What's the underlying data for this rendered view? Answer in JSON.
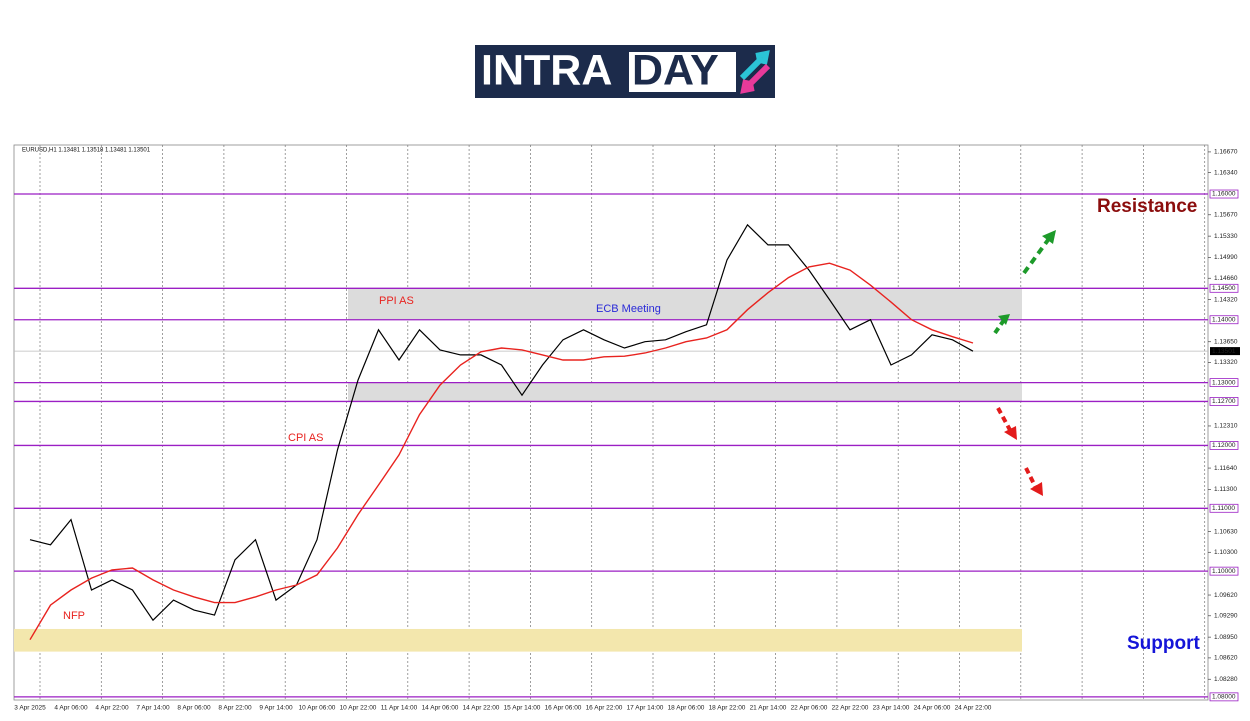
{
  "logo": {
    "part1": "INTRA",
    "part2": "DAY"
  },
  "chart_data": {
    "type": "line",
    "info": "EURUSD,H1  1.13481 1.13518 1.13481 1.13501",
    "categories": [
      "3 Apr 2025",
      null,
      "4 Apr 06:00",
      null,
      "4 Apr 22:00",
      null,
      "7 Apr 14:00",
      null,
      "8 Apr 06:00",
      null,
      "8 Apr 22:00",
      null,
      "9 Apr 14:00",
      null,
      "10 Apr 06:00",
      null,
      "10 Apr 22:00",
      null,
      "11 Apr 14:00",
      null,
      "14 Apr 06:00",
      null,
      "14 Apr 22:00",
      null,
      "15 Apr 14:00",
      null,
      "16 Apr 06:00",
      null,
      "16 Apr 22:00",
      null,
      "17 Apr 14:00",
      null,
      "18 Apr 06:00",
      null,
      "18 Apr 22:00",
      null,
      "21 Apr 14:00",
      null,
      "22 Apr 06:00",
      null,
      "22 Apr 22:00",
      null,
      "23 Apr 14:00",
      null,
      "24 Apr 06:00",
      null,
      "24 Apr 22:00"
    ],
    "series": [
      {
        "name": "EURUSD",
        "color": "#000000",
        "values": [
          1.105,
          1.1042,
          1.1082,
          1.097,
          1.0986,
          1.097,
          1.0922,
          1.0954,
          1.0938,
          1.093,
          1.1018,
          1.105,
          1.0954,
          1.0978,
          1.105,
          1.1193,
          1.1304,
          1.1384,
          1.1336,
          1.1384,
          1.1352,
          1.1344,
          1.1344,
          1.1328,
          1.128,
          1.1328,
          1.1368,
          1.1384,
          1.1368,
          1.1355,
          1.1365,
          1.1368,
          1.1381,
          1.1392,
          1.1495,
          1.1551,
          1.1519,
          1.1519,
          1.1479,
          1.1432,
          1.1384,
          1.14,
          1.1328,
          1.1344,
          1.1376,
          1.1368,
          1.135
        ]
      },
      {
        "name": "MA",
        "color": "#e8231f",
        "values": [
          1.0891,
          1.0946,
          1.097,
          1.0989,
          1.1002,
          1.1005,
          1.0986,
          1.097,
          1.0959,
          1.095,
          1.095,
          1.0959,
          1.097,
          1.0978,
          1.0994,
          1.1037,
          1.109,
          1.1137,
          1.1185,
          1.1249,
          1.1296,
          1.1328,
          1.1349,
          1.1355,
          1.1352,
          1.1344,
          1.1336,
          1.1336,
          1.1341,
          1.1342,
          1.1347,
          1.1355,
          1.1365,
          1.1371,
          1.1384,
          1.1416,
          1.1443,
          1.1467,
          1.1484,
          1.149,
          1.1479,
          1.1455,
          1.1428,
          1.14,
          1.1384,
          1.1373,
          1.1363
        ]
      }
    ],
    "ylim": [
      1.0795,
      1.1678
    ],
    "yticks": [
      {
        "value": 1.1667,
        "label": "1.16670"
      },
      {
        "value": 1.1634,
        "label": "1.16340"
      },
      {
        "value": 1.1567,
        "label": "1.15670"
      },
      {
        "value": 1.1533,
        "label": "1.15330"
      },
      {
        "value": 1.1499,
        "label": "1.14990"
      },
      {
        "value": 1.1466,
        "label": "1.14660"
      },
      {
        "value": 1.1432,
        "label": "1.14320"
      },
      {
        "value": 1.1365,
        "label": "1.13650"
      },
      {
        "value": 1.1332,
        "label": "1.13320"
      },
      {
        "value": 1.1231,
        "label": "1.12310"
      },
      {
        "value": 1.1164,
        "label": "1.11640"
      },
      {
        "value": 1.113,
        "label": "1.11300"
      },
      {
        "value": 1.1063,
        "label": "1.10630"
      },
      {
        "value": 1.103,
        "label": "1.10300"
      },
      {
        "value": 1.0962,
        "label": "1.09620"
      },
      {
        "value": 1.0929,
        "label": "1.09290"
      },
      {
        "value": 1.0895,
        "label": "1.08950"
      },
      {
        "value": 1.0862,
        "label": "1.08620"
      },
      {
        "value": 1.0828,
        "label": "1.08280"
      }
    ],
    "levels": [
      {
        "value": 1.16,
        "label": "1.16000"
      },
      {
        "value": 1.145,
        "label": "1.14500"
      },
      {
        "value": 1.14,
        "label": "1.14000"
      },
      {
        "value": 1.13,
        "label": "1.13000"
      },
      {
        "value": 1.127,
        "label": "1.12700"
      },
      {
        "value": 1.12,
        "label": "1.12000"
      },
      {
        "value": 1.11,
        "label": "1.11000"
      },
      {
        "value": 1.1,
        "label": "1.10000"
      },
      {
        "value": 1.08,
        "label": "1.08000"
      }
    ],
    "level_color": "#9b1fc4",
    "last_price": {
      "value": 1.13501,
      "label": "1.13501"
    },
    "zones": [
      {
        "range": [
          1.14,
          1.145
        ],
        "color": "#dcdcdc"
      },
      {
        "range": [
          1.127,
          1.13
        ],
        "color": "#dcdcdc"
      },
      {
        "range": [
          1.0872,
          1.0908
        ],
        "color": "#f3e7ad"
      }
    ],
    "annotations": {
      "nfp": "NFP",
      "cpi": "CPI AS",
      "ppi": "PPI AS",
      "ecb": "ECB Meeting",
      "resistance": "Resistance",
      "support": "Support"
    },
    "grid": true
  }
}
